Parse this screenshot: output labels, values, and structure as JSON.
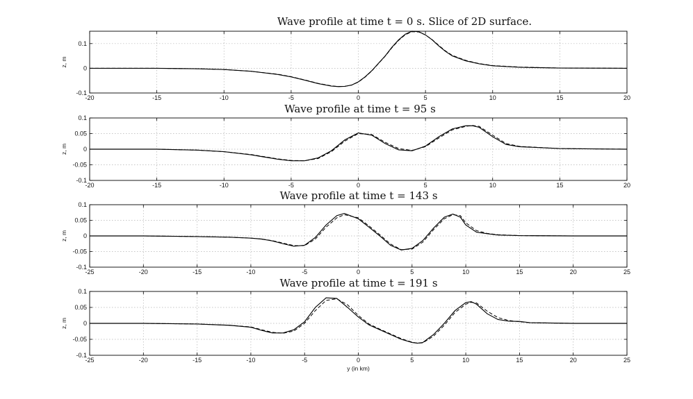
{
  "chart_data": [
    {
      "type": "line",
      "title": "Wave profile at time t = 0 s. Slice of 2D surface.",
      "ylabel": "z, m",
      "xlabel": "",
      "xlim": [
        -20,
        20
      ],
      "ylim": [
        -0.1,
        0.15
      ],
      "xticks": [
        -20,
        -15,
        -10,
        -5,
        0,
        5,
        10,
        15,
        20
      ],
      "yticks": [
        -0.1,
        0,
        0.1
      ],
      "grid": true,
      "series": [
        {
          "style": "solid",
          "x": [
            -20,
            -15,
            -12,
            -10,
            -8,
            -6,
            -5,
            -4,
            -3,
            -2,
            -1.5,
            -1,
            -0.5,
            0,
            0.5,
            1,
            1.5,
            2,
            2.5,
            3,
            3.5,
            4,
            4.5,
            5,
            5.5,
            6,
            6.5,
            7,
            8,
            9,
            10,
            12,
            15,
            20
          ],
          "y": [
            0,
            0,
            -0.002,
            -0.005,
            -0.012,
            -0.025,
            -0.035,
            -0.048,
            -0.062,
            -0.072,
            -0.074,
            -0.073,
            -0.068,
            -0.055,
            -0.035,
            -0.01,
            0.02,
            0.05,
            0.085,
            0.115,
            0.138,
            0.15,
            0.148,
            0.135,
            0.115,
            0.09,
            0.068,
            0.05,
            0.03,
            0.018,
            0.01,
            0.004,
            0.001,
            0
          ]
        },
        {
          "style": "dashed",
          "x": [
            -20,
            -15,
            -12,
            -10,
            -8,
            -6,
            -5,
            -4,
            -3,
            -2,
            -1.5,
            -1,
            -0.5,
            0,
            0.5,
            1,
            1.5,
            2,
            2.5,
            3,
            3.5,
            4,
            4.5,
            5,
            5.5,
            6,
            6.5,
            7,
            8,
            9,
            10,
            12,
            15,
            20
          ],
          "y": [
            0,
            0,
            -0.002,
            -0.005,
            -0.012,
            -0.024,
            -0.034,
            -0.047,
            -0.061,
            -0.071,
            -0.074,
            -0.073,
            -0.068,
            -0.056,
            -0.036,
            -0.011,
            0.019,
            0.049,
            0.083,
            0.113,
            0.136,
            0.148,
            0.147,
            0.135,
            0.116,
            0.092,
            0.07,
            0.052,
            0.032,
            0.019,
            0.011,
            0.005,
            0.001,
            0
          ]
        }
      ]
    },
    {
      "type": "line",
      "title": "Wave profile at time t = 95 s",
      "ylabel": "z, m",
      "xlabel": "",
      "xlim": [
        -20,
        20
      ],
      "ylim": [
        -0.1,
        0.1
      ],
      "xticks": [
        -20,
        -15,
        -10,
        -5,
        0,
        5,
        10,
        15,
        20
      ],
      "yticks": [
        -0.1,
        -0.05,
        0,
        0.05,
        0.1
      ],
      "grid": true,
      "series": [
        {
          "style": "solid",
          "x": [
            -20,
            -15,
            -12,
            -10,
            -8,
            -7,
            -6,
            -5,
            -4,
            -3,
            -2,
            -1,
            0,
            1,
            2,
            3,
            4,
            5,
            6,
            7,
            8,
            8.5,
            9,
            10,
            11,
            12,
            15,
            20
          ],
          "y": [
            0,
            0,
            -0.003,
            -0.008,
            -0.018,
            -0.025,
            -0.032,
            -0.037,
            -0.037,
            -0.028,
            -0.005,
            0.03,
            0.052,
            0.045,
            0.018,
            -0.002,
            -0.005,
            0.01,
            0.04,
            0.065,
            0.075,
            0.075,
            0.07,
            0.04,
            0.015,
            0.008,
            0.002,
            0
          ]
        },
        {
          "style": "dashed",
          "x": [
            -20,
            -15,
            -12,
            -10,
            -8,
            -7,
            -6,
            -5,
            -4,
            -3,
            -2,
            -1,
            0,
            1,
            2,
            3,
            4,
            5,
            6,
            7,
            8,
            8.5,
            9,
            10,
            11,
            12,
            15,
            20
          ],
          "y": [
            0,
            0,
            -0.003,
            -0.008,
            -0.017,
            -0.024,
            -0.031,
            -0.036,
            -0.037,
            -0.03,
            -0.008,
            0.026,
            0.05,
            0.047,
            0.022,
            0.002,
            -0.004,
            0.008,
            0.036,
            0.062,
            0.073,
            0.076,
            0.073,
            0.045,
            0.018,
            0.009,
            0.002,
            0
          ]
        }
      ]
    },
    {
      "type": "line",
      "title": "Wave profile at time t = 143 s",
      "ylabel": "z, m",
      "xlabel": "",
      "xlim": [
        -25,
        25
      ],
      "ylim": [
        -0.1,
        0.1
      ],
      "xticks": [
        -25,
        -20,
        -15,
        -10,
        -5,
        0,
        5,
        10,
        15,
        20,
        25
      ],
      "yticks": [
        -0.1,
        -0.05,
        0,
        0.05,
        0.1
      ],
      "grid": true,
      "series": [
        {
          "style": "solid",
          "x": [
            -25,
            -20,
            -15,
            -12,
            -10,
            -9,
            -8,
            -7,
            -6,
            -5,
            -4,
            -3,
            -2,
            -1.3,
            0,
            1,
            2,
            3,
            4,
            5,
            6,
            7,
            8,
            8.8,
            9.5,
            10,
            11,
            12,
            13,
            15,
            20,
            25
          ],
          "y": [
            0,
            0,
            -0.002,
            -0.004,
            -0.007,
            -0.01,
            -0.016,
            -0.025,
            -0.033,
            -0.03,
            -0.005,
            0.035,
            0.065,
            0.072,
            0.055,
            0.028,
            0.0,
            -0.03,
            -0.045,
            -0.04,
            -0.015,
            0.025,
            0.06,
            0.07,
            0.06,
            0.035,
            0.012,
            0.007,
            0.003,
            0.001,
            0,
            0
          ]
        },
        {
          "style": "dashed",
          "x": [
            -25,
            -20,
            -15,
            -12,
            -10,
            -9,
            -8,
            -7,
            -6,
            -5,
            -4,
            -3,
            -2,
            -1.3,
            0,
            1,
            2,
            3,
            4,
            5,
            6,
            7,
            8,
            8.8,
            9.5,
            10,
            11,
            12,
            13,
            15,
            20,
            25
          ],
          "y": [
            0,
            0,
            -0.002,
            -0.004,
            -0.007,
            -0.01,
            -0.015,
            -0.023,
            -0.031,
            -0.031,
            -0.01,
            0.028,
            0.058,
            0.068,
            0.058,
            0.032,
            0.004,
            -0.026,
            -0.044,
            -0.042,
            -0.02,
            0.02,
            0.055,
            0.068,
            0.065,
            0.042,
            0.017,
            0.008,
            0.004,
            0.001,
            0,
            0
          ]
        }
      ]
    },
    {
      "type": "line",
      "title": "Wave profile at time t = 191 s",
      "ylabel": "z, m",
      "xlabel": "y (in km)",
      "xlim": [
        -25,
        25
      ],
      "ylim": [
        -0.1,
        0.1
      ],
      "xticks": [
        -25,
        -20,
        -15,
        -10,
        -5,
        0,
        5,
        10,
        15,
        20,
        25
      ],
      "yticks": [
        -0.1,
        -0.05,
        0,
        0.05,
        0.1
      ],
      "grid": true,
      "series": [
        {
          "style": "solid",
          "x": [
            -25,
            -20,
            -15,
            -12,
            -10,
            -9,
            -8,
            -7,
            -6,
            -5,
            -4,
            -3,
            -2,
            -1,
            0,
            1,
            2,
            3,
            4,
            5,
            5.5,
            6,
            7,
            8,
            9,
            10,
            10.5,
            11,
            12,
            13,
            14,
            15,
            16,
            20,
            25
          ],
          "y": [
            0,
            0,
            -0.002,
            -0.006,
            -0.012,
            -0.022,
            -0.03,
            -0.03,
            -0.02,
            0.005,
            0.05,
            0.08,
            0.078,
            0.05,
            0.02,
            -0.005,
            -0.02,
            -0.035,
            -0.05,
            -0.06,
            -0.062,
            -0.06,
            -0.035,
            0.0,
            0.04,
            0.065,
            0.068,
            0.06,
            0.03,
            0.012,
            0.007,
            0.006,
            0.002,
            0,
            0
          ]
        },
        {
          "style": "dashed",
          "x": [
            -25,
            -20,
            -15,
            -12,
            -10,
            -9,
            -8,
            -7,
            -6,
            -5,
            -4,
            -3,
            -2,
            -1,
            0,
            1,
            2,
            3,
            4,
            5,
            5.5,
            6,
            7,
            8,
            9,
            10,
            10.5,
            11,
            12,
            13,
            14,
            15,
            16,
            20,
            25
          ],
          "y": [
            0,
            0,
            -0.002,
            -0.006,
            -0.011,
            -0.02,
            -0.028,
            -0.031,
            -0.024,
            0.0,
            0.04,
            0.072,
            0.077,
            0.058,
            0.025,
            -0.002,
            -0.018,
            -0.033,
            -0.048,
            -0.059,
            -0.062,
            -0.061,
            -0.04,
            -0.006,
            0.034,
            0.06,
            0.066,
            0.064,
            0.038,
            0.018,
            0.009,
            0.005,
            0.002,
            0,
            0
          ]
        }
      ]
    }
  ]
}
